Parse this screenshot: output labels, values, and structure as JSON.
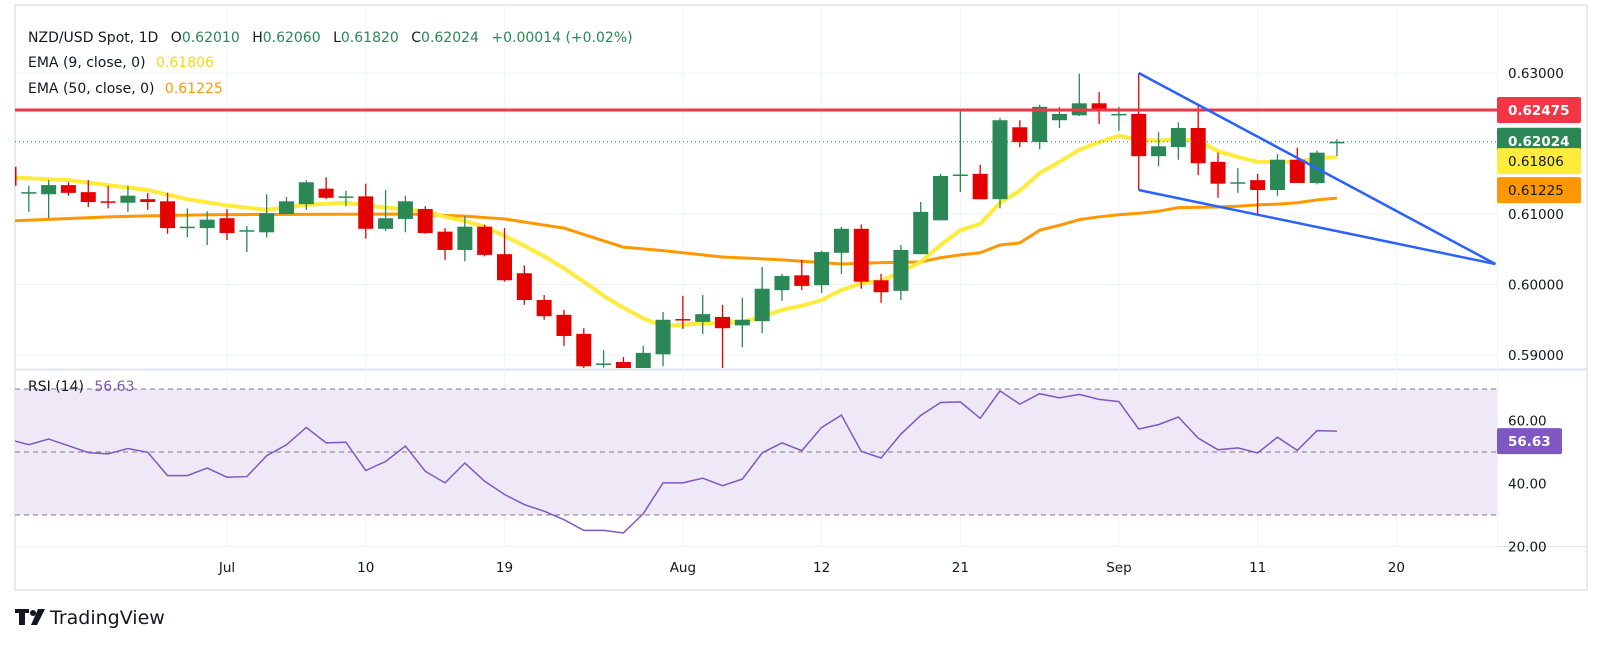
{
  "header": {
    "symbol": "NZD/USD Spot, 1D",
    "o_label": "O",
    "o_value": "0.62010",
    "h_label": "H",
    "h_value": "0.62060",
    "l_label": "L",
    "l_value": "0.61820",
    "c_label": "C",
    "c_value": "0.62024",
    "change": "+0.00014 (+0.02%)",
    "ema9_label": "EMA (9, close, 0)",
    "ema9_value": "0.61806",
    "ema50_label": "EMA (50, close, 0)",
    "ema50_value": "0.61225"
  },
  "rsi_header": {
    "label": "RSI (14)",
    "value": "56.63"
  },
  "price_tags": {
    "resistance": "0.62475",
    "last": "0.62024",
    "ema9": "0.61806",
    "ema50": "0.61225",
    "rsi": "56.63"
  },
  "branding": {
    "logo_text": "TradingView"
  },
  "colors": {
    "up": "#2b8756",
    "down": "#e50000",
    "ema9": "#ffeb3b",
    "ema50": "#ff9800",
    "resistance": "#f23645",
    "trend": "#2962ff",
    "rsi": "#7e57c2",
    "rsi_band": "#ede7f6"
  },
  "chart_data": {
    "type": "candlestick",
    "title": "NZD/USD Spot, 1D",
    "price_axis": {
      "ylim": [
        0.5875,
        0.6335
      ],
      "ticks": [
        "0.63000",
        "0.61000",
        "0.60000",
        "0.59000"
      ],
      "tick_values": [
        0.63,
        0.62,
        0.61,
        0.6,
        0.59
      ]
    },
    "x_labels": [
      {
        "index": 11,
        "label": "Jul"
      },
      {
        "index": 18,
        "label": "10"
      },
      {
        "index": 25,
        "label": "19"
      },
      {
        "index": 34,
        "label": "Aug"
      },
      {
        "index": 41,
        "label": "12"
      },
      {
        "index": 48,
        "label": "21"
      },
      {
        "index": 56,
        "label": "Sep"
      },
      {
        "index": 63,
        "label": "11"
      },
      {
        "index": 70,
        "label": "20"
      }
    ],
    "ohlc": [
      [
        0.6167,
        0.617,
        0.6138,
        0.614
      ],
      [
        0.6131,
        0.614,
        0.6103,
        0.6131
      ],
      [
        0.6128,
        0.6148,
        0.6094,
        0.6141
      ],
      [
        0.6141,
        0.6145,
        0.6126,
        0.613
      ],
      [
        0.6131,
        0.6148,
        0.611,
        0.6117
      ],
      [
        0.6118,
        0.614,
        0.6108,
        0.6116
      ],
      [
        0.6116,
        0.614,
        0.6103,
        0.6126
      ],
      [
        0.6121,
        0.613,
        0.6106,
        0.6117
      ],
      [
        0.6118,
        0.613,
        0.6072,
        0.608
      ],
      [
        0.6081,
        0.6108,
        0.6067,
        0.6082
      ],
      [
        0.608,
        0.6104,
        0.6056,
        0.6092
      ],
      [
        0.6094,
        0.6107,
        0.6063,
        0.6073
      ],
      [
        0.6075,
        0.6083,
        0.6046,
        0.6077
      ],
      [
        0.6074,
        0.6128,
        0.6067,
        0.6101
      ],
      [
        0.61,
        0.6124,
        0.6099,
        0.6118
      ],
      [
        0.6114,
        0.6148,
        0.6106,
        0.6145
      ],
      [
        0.6136,
        0.6152,
        0.6121,
        0.6123
      ],
      [
        0.6123,
        0.6133,
        0.6111,
        0.6125
      ],
      [
        0.6125,
        0.6143,
        0.6065,
        0.6079
      ],
      [
        0.6079,
        0.6134,
        0.6076,
        0.6094
      ],
      [
        0.6093,
        0.6126,
        0.6074,
        0.6118
      ],
      [
        0.6107,
        0.6111,
        0.6072,
        0.6073
      ],
      [
        0.6075,
        0.608,
        0.6035,
        0.6049
      ],
      [
        0.6049,
        0.6097,
        0.6033,
        0.6082
      ],
      [
        0.6082,
        0.6085,
        0.604,
        0.6042
      ],
      [
        0.6043,
        0.608,
        0.6004,
        0.6006
      ],
      [
        0.6016,
        0.6027,
        0.5971,
        0.5978
      ],
      [
        0.5978,
        0.5985,
        0.595,
        0.5955
      ],
      [
        0.5957,
        0.5964,
        0.5913,
        0.5927
      ],
      [
        0.593,
        0.5938,
        0.5879,
        0.5884
      ],
      [
        0.5887,
        0.5907,
        0.5882,
        0.5888
      ],
      [
        0.589,
        0.5897,
        0.5878,
        0.588
      ],
      [
        0.588,
        0.5913,
        0.5876,
        0.5903
      ],
      [
        0.5901,
        0.5961,
        0.5884,
        0.595
      ],
      [
        0.5951,
        0.5984,
        0.5937,
        0.5949
      ],
      [
        0.5947,
        0.5985,
        0.593,
        0.5958
      ],
      [
        0.5954,
        0.5971,
        0.588,
        0.5938
      ],
      [
        0.5942,
        0.5981,
        0.5911,
        0.595
      ],
      [
        0.5948,
        0.6025,
        0.5931,
        0.5994
      ],
      [
        0.5992,
        0.6015,
        0.5977,
        0.6012
      ],
      [
        0.6013,
        0.6035,
        0.5992,
        0.5998
      ],
      [
        0.5999,
        0.6048,
        0.5988,
        0.6046
      ],
      [
        0.6045,
        0.6082,
        0.6015,
        0.6079
      ],
      [
        0.6079,
        0.6085,
        0.5994,
        0.6004
      ],
      [
        0.6006,
        0.6015,
        0.5974,
        0.5989
      ],
      [
        0.5991,
        0.6056,
        0.5978,
        0.6049
      ],
      [
        0.6043,
        0.6117,
        0.6043,
        0.6103
      ],
      [
        0.6091,
        0.6157,
        0.6091,
        0.6154
      ],
      [
        0.6154,
        0.6246,
        0.6131,
        0.6156
      ],
      [
        0.6157,
        0.617,
        0.6121,
        0.6121
      ],
      [
        0.6121,
        0.6236,
        0.6108,
        0.6233
      ],
      [
        0.6223,
        0.6233,
        0.6195,
        0.6202
      ],
      [
        0.6202,
        0.6255,
        0.6192,
        0.6252
      ],
      [
        0.6233,
        0.6252,
        0.6222,
        0.6242
      ],
      [
        0.624,
        0.6299,
        0.6239,
        0.6257
      ],
      [
        0.6257,
        0.6273,
        0.6228,
        0.6246
      ],
      [
        0.6241,
        0.6252,
        0.6218,
        0.6242
      ],
      [
        0.6242,
        0.63,
        0.6134,
        0.6182
      ],
      [
        0.6182,
        0.6216,
        0.6168,
        0.6196
      ],
      [
        0.6195,
        0.623,
        0.6177,
        0.6222
      ],
      [
        0.6222,
        0.6253,
        0.6155,
        0.6172
      ],
      [
        0.6174,
        0.6187,
        0.6123,
        0.6143
      ],
      [
        0.6143,
        0.6165,
        0.613,
        0.6145
      ],
      [
        0.6148,
        0.6157,
        0.6097,
        0.6134
      ],
      [
        0.6134,
        0.6185,
        0.6126,
        0.6177
      ],
      [
        0.6177,
        0.6194,
        0.6144,
        0.6144
      ],
      [
        0.6144,
        0.619,
        0.6142,
        0.6187
      ],
      [
        0.6201,
        0.6206,
        0.6182,
        0.62024
      ]
    ],
    "ema9": [
      [
        0,
        0.6152
      ],
      [
        3,
        0.6148
      ],
      [
        5,
        0.6141
      ],
      [
        7,
        0.6134
      ],
      [
        9,
        0.6121
      ],
      [
        11,
        0.6112
      ],
      [
        13,
        0.6106
      ],
      [
        15,
        0.6113
      ],
      [
        17,
        0.6116
      ],
      [
        19,
        0.6109
      ],
      [
        21,
        0.6104
      ],
      [
        22,
        0.6096
      ],
      [
        23,
        0.609
      ],
      [
        24,
        0.6082
      ],
      [
        25,
        0.6069
      ],
      [
        26,
        0.6055
      ],
      [
        27,
        0.604
      ],
      [
        28,
        0.6023
      ],
      [
        29,
        0.6004
      ],
      [
        30,
        0.5984
      ],
      [
        31,
        0.5967
      ],
      [
        32,
        0.5952
      ],
      [
        33,
        0.5941
      ],
      [
        34,
        0.5943
      ],
      [
        36,
        0.5946
      ],
      [
        37,
        0.5947
      ],
      [
        38,
        0.5954
      ],
      [
        39,
        0.5964
      ],
      [
        40,
        0.597
      ],
      [
        41,
        0.5978
      ],
      [
        42,
        0.5992
      ],
      [
        43,
        0.6002
      ],
      [
        44,
        0.6005
      ],
      [
        45,
        0.6018
      ],
      [
        46,
        0.6032
      ],
      [
        47,
        0.6056
      ],
      [
        48,
        0.6077
      ],
      [
        49,
        0.6086
      ],
      [
        50,
        0.6116
      ],
      [
        51,
        0.6133
      ],
      [
        52,
        0.6158
      ],
      [
        53,
        0.6174
      ],
      [
        54,
        0.6191
      ],
      [
        55,
        0.6202
      ],
      [
        56,
        0.6211
      ],
      [
        57,
        0.6205
      ],
      [
        58,
        0.6204
      ],
      [
        59,
        0.6206
      ],
      [
        60,
        0.6204
      ],
      [
        61,
        0.6189
      ],
      [
        62,
        0.6181
      ],
      [
        63,
        0.6174
      ],
      [
        65,
        0.6174
      ],
      [
        66,
        0.6179
      ],
      [
        67,
        0.61806
      ]
    ],
    "ema50": [
      [
        0,
        0.609
      ],
      [
        5,
        0.6096
      ],
      [
        10,
        0.6099
      ],
      [
        20,
        0.61
      ],
      [
        23,
        0.6097
      ],
      [
        25,
        0.6093
      ],
      [
        28,
        0.608
      ],
      [
        31,
        0.6053
      ],
      [
        33,
        0.6048
      ],
      [
        36,
        0.6039
      ],
      [
        39,
        0.6035
      ],
      [
        42,
        0.6029
      ],
      [
        44,
        0.6031
      ],
      [
        46,
        0.6032
      ],
      [
        47,
        0.6038
      ],
      [
        48,
        0.6042
      ],
      [
        49,
        0.6045
      ],
      [
        50,
        0.6056
      ],
      [
        51,
        0.6059
      ],
      [
        52,
        0.6077
      ],
      [
        53,
        0.6084
      ],
      [
        54,
        0.6092
      ],
      [
        55,
        0.6096
      ],
      [
        56,
        0.6099
      ],
      [
        57,
        0.6101
      ],
      [
        58,
        0.6104
      ],
      [
        59,
        0.6109
      ],
      [
        61,
        0.611
      ],
      [
        62,
        0.6111
      ],
      [
        63,
        0.6113
      ],
      [
        64,
        0.6114
      ],
      [
        65,
        0.6116
      ],
      [
        66,
        0.612
      ],
      [
        67,
        0.61225
      ]
    ],
    "resistance": 0.62475,
    "trendlines": [
      {
        "name": "upper",
        "from": [
          57,
          0.63
        ],
        "to": [
          75,
          0.6029
        ]
      },
      {
        "name": "lower",
        "from": [
          57,
          0.6134
        ],
        "to": [
          75,
          0.6029
        ]
      }
    ],
    "rsi": {
      "period": 14,
      "ylim": [
        15,
        75
      ],
      "ticks": [
        "60.00",
        "40.00",
        "20.00"
      ],
      "tick_values": [
        60,
        40,
        20
      ],
      "bands": [
        70,
        50,
        30
      ],
      "values": [
        54.0,
        52.3,
        54.1,
        52.0,
        49.8,
        49.4,
        51.1,
        49.9,
        42.5,
        42.5,
        44.9,
        42.0,
        42.2,
        48.8,
        52.3,
        57.8,
        52.9,
        53.1,
        44.1,
        47.0,
        51.9,
        43.9,
        40.2,
        46.5,
        40.7,
        36.5,
        33.3,
        31.2,
        28.5,
        25.1,
        25.1,
        24.3,
        30.4,
        40.2,
        40.2,
        41.7,
        39.3,
        41.4,
        49.7,
        52.9,
        50.4,
        57.8,
        61.7,
        50.2,
        48.1,
        55.7,
        61.6,
        65.7,
        65.9,
        60.7,
        69.4,
        65.2,
        68.5,
        67.2,
        68.3,
        66.7,
        66.0,
        57.3,
        58.7,
        61.1,
        54.4,
        50.7,
        51.3,
        49.7,
        54.7,
        50.5,
        56.8,
        56.63
      ]
    }
  }
}
